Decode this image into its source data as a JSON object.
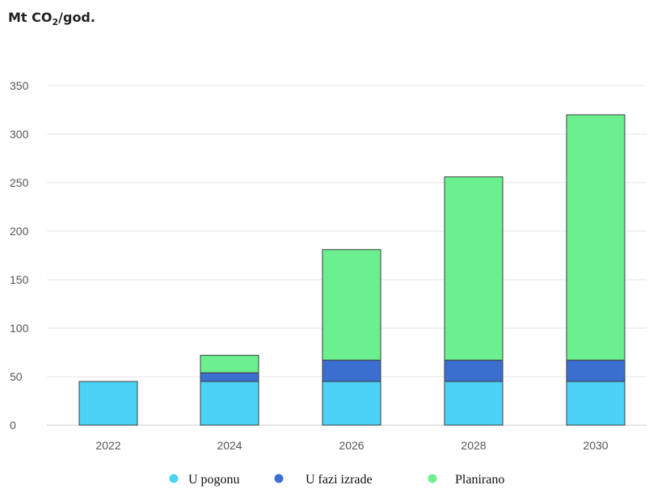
{
  "unit_label": {
    "prefix": "Mt CO",
    "subscript": "2",
    "suffix": "/god."
  },
  "colors": {
    "u_pogonu": "#4dd2f7",
    "u_fazi_izrade": "#3a6fd0",
    "planirano": "#6cf08f",
    "grid": "#e6e6e6",
    "bar_outline": "#3d3d3d"
  },
  "chart_data": {
    "type": "bar",
    "stacked": true,
    "categories": [
      "2022",
      "2024",
      "2026",
      "2028",
      "2030"
    ],
    "series": [
      {
        "name": "U pogonu",
        "values": [
          45,
          45,
          45,
          45,
          45
        ]
      },
      {
        "name": "U fazi izrade",
        "values": [
          0,
          9,
          22,
          22,
          22
        ]
      },
      {
        "name": "Planirano",
        "values": [
          0,
          18,
          114,
          189,
          253
        ]
      }
    ],
    "title": "",
    "xlabel": "",
    "ylabel": "Mt CO2/god.",
    "ylim": [
      0,
      350
    ],
    "yticks": [
      0,
      50,
      100,
      150,
      200,
      250,
      300,
      350
    ],
    "grid": true,
    "legend_position": "bottom"
  }
}
